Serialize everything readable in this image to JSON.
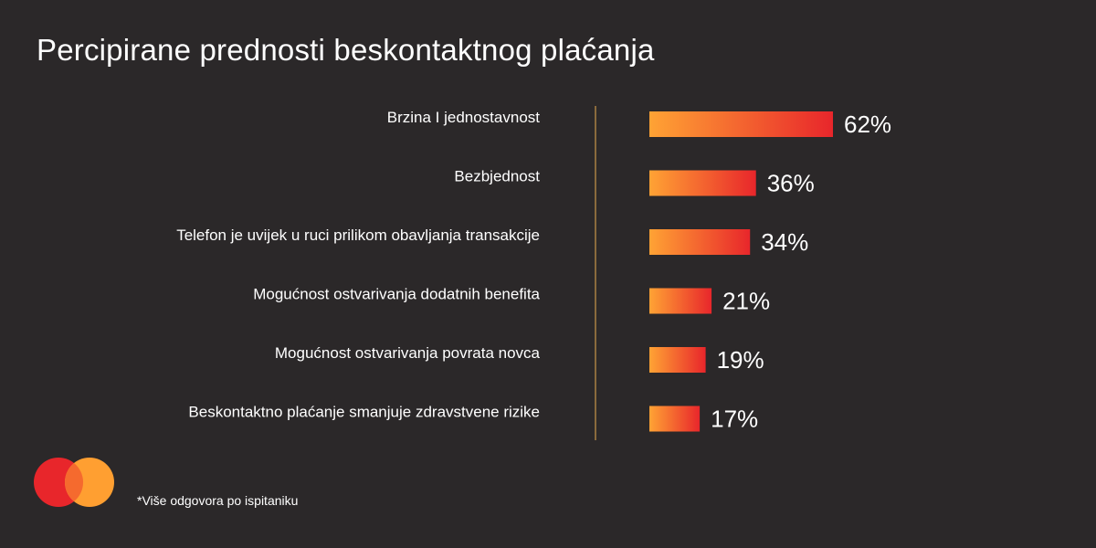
{
  "title": "Percipirane prednosti beskontaktnog plaćanja",
  "footnote": "*Više odgovora po ispitaniku",
  "colors": {
    "background": "#2b2829",
    "bar_gradient_start": "#ffa334",
    "bar_gradient_end": "#e8262b",
    "divider": "#8a6a3c",
    "logo_left": "#e8262b",
    "logo_right": "#ff9f31"
  },
  "logo_icon": "two-overlapping-circles-logo",
  "chart_data": {
    "type": "bar",
    "orientation": "horizontal",
    "title": "Percipirane prednosti beskontaktnog plaćanja",
    "categories": [
      "Brzina I jednostavnost",
      "Bezbjednost",
      "Telefon je uvijek u ruci prilikom obavljanja transakcije",
      "Mogućnost ostvarivanja dodatnih benefita",
      "Mogućnost ostvarivanja povrata novca",
      "Beskontaktno plaćanje smanjuje zdravstvene rizike"
    ],
    "values": [
      62,
      36,
      34,
      21,
      19,
      17
    ],
    "value_labels": [
      "62%",
      "36%",
      "34%",
      "21%",
      "19%",
      "17%"
    ],
    "unit": "%",
    "grid": false,
    "legend": "none"
  }
}
